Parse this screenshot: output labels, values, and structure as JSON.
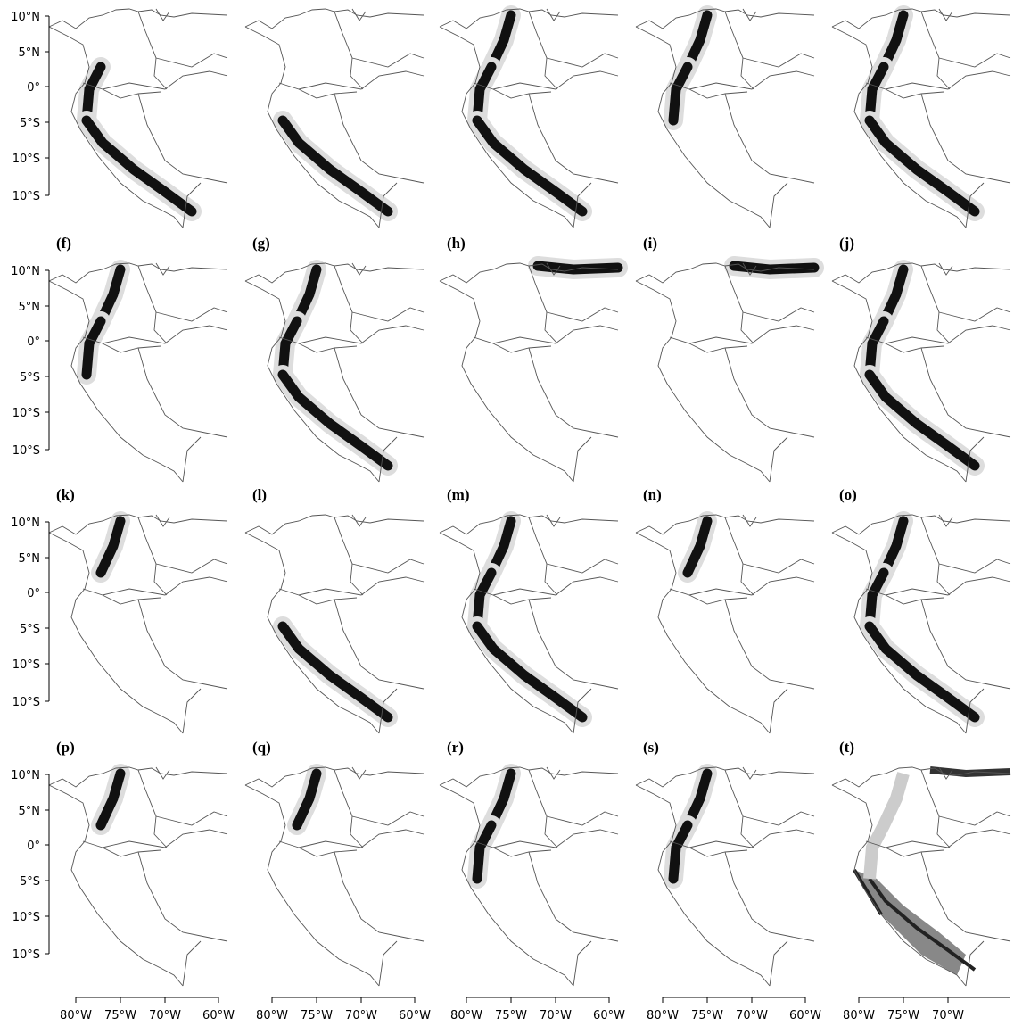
{
  "panel_labels": [
    "(f)",
    "(g)",
    "(h)",
    "(i)",
    "(j)",
    "(k)",
    "(l)",
    "(m)",
    "(n)",
    "(o)",
    "(p)",
    "(q)",
    "(r)",
    "(s)",
    "(t)"
  ],
  "lat_labels": [
    "10°N",
    "5°N",
    "0°",
    "5°S",
    "10°S",
    "10°S"
  ],
  "lon_labels": [
    [
      "80°W",
      "75°W",
      "70°W",
      "60°W"
    ],
    [
      "80°W",
      "75°W",
      "70°W",
      "60°W"
    ],
    [
      "80°W",
      "75°W",
      "70°W",
      "60°W"
    ],
    [
      "80°W",
      "75°W",
      "70°W",
      "60°W"
    ],
    [
      "80°W",
      "75°W",
      "70°W"
    ]
  ]
}
